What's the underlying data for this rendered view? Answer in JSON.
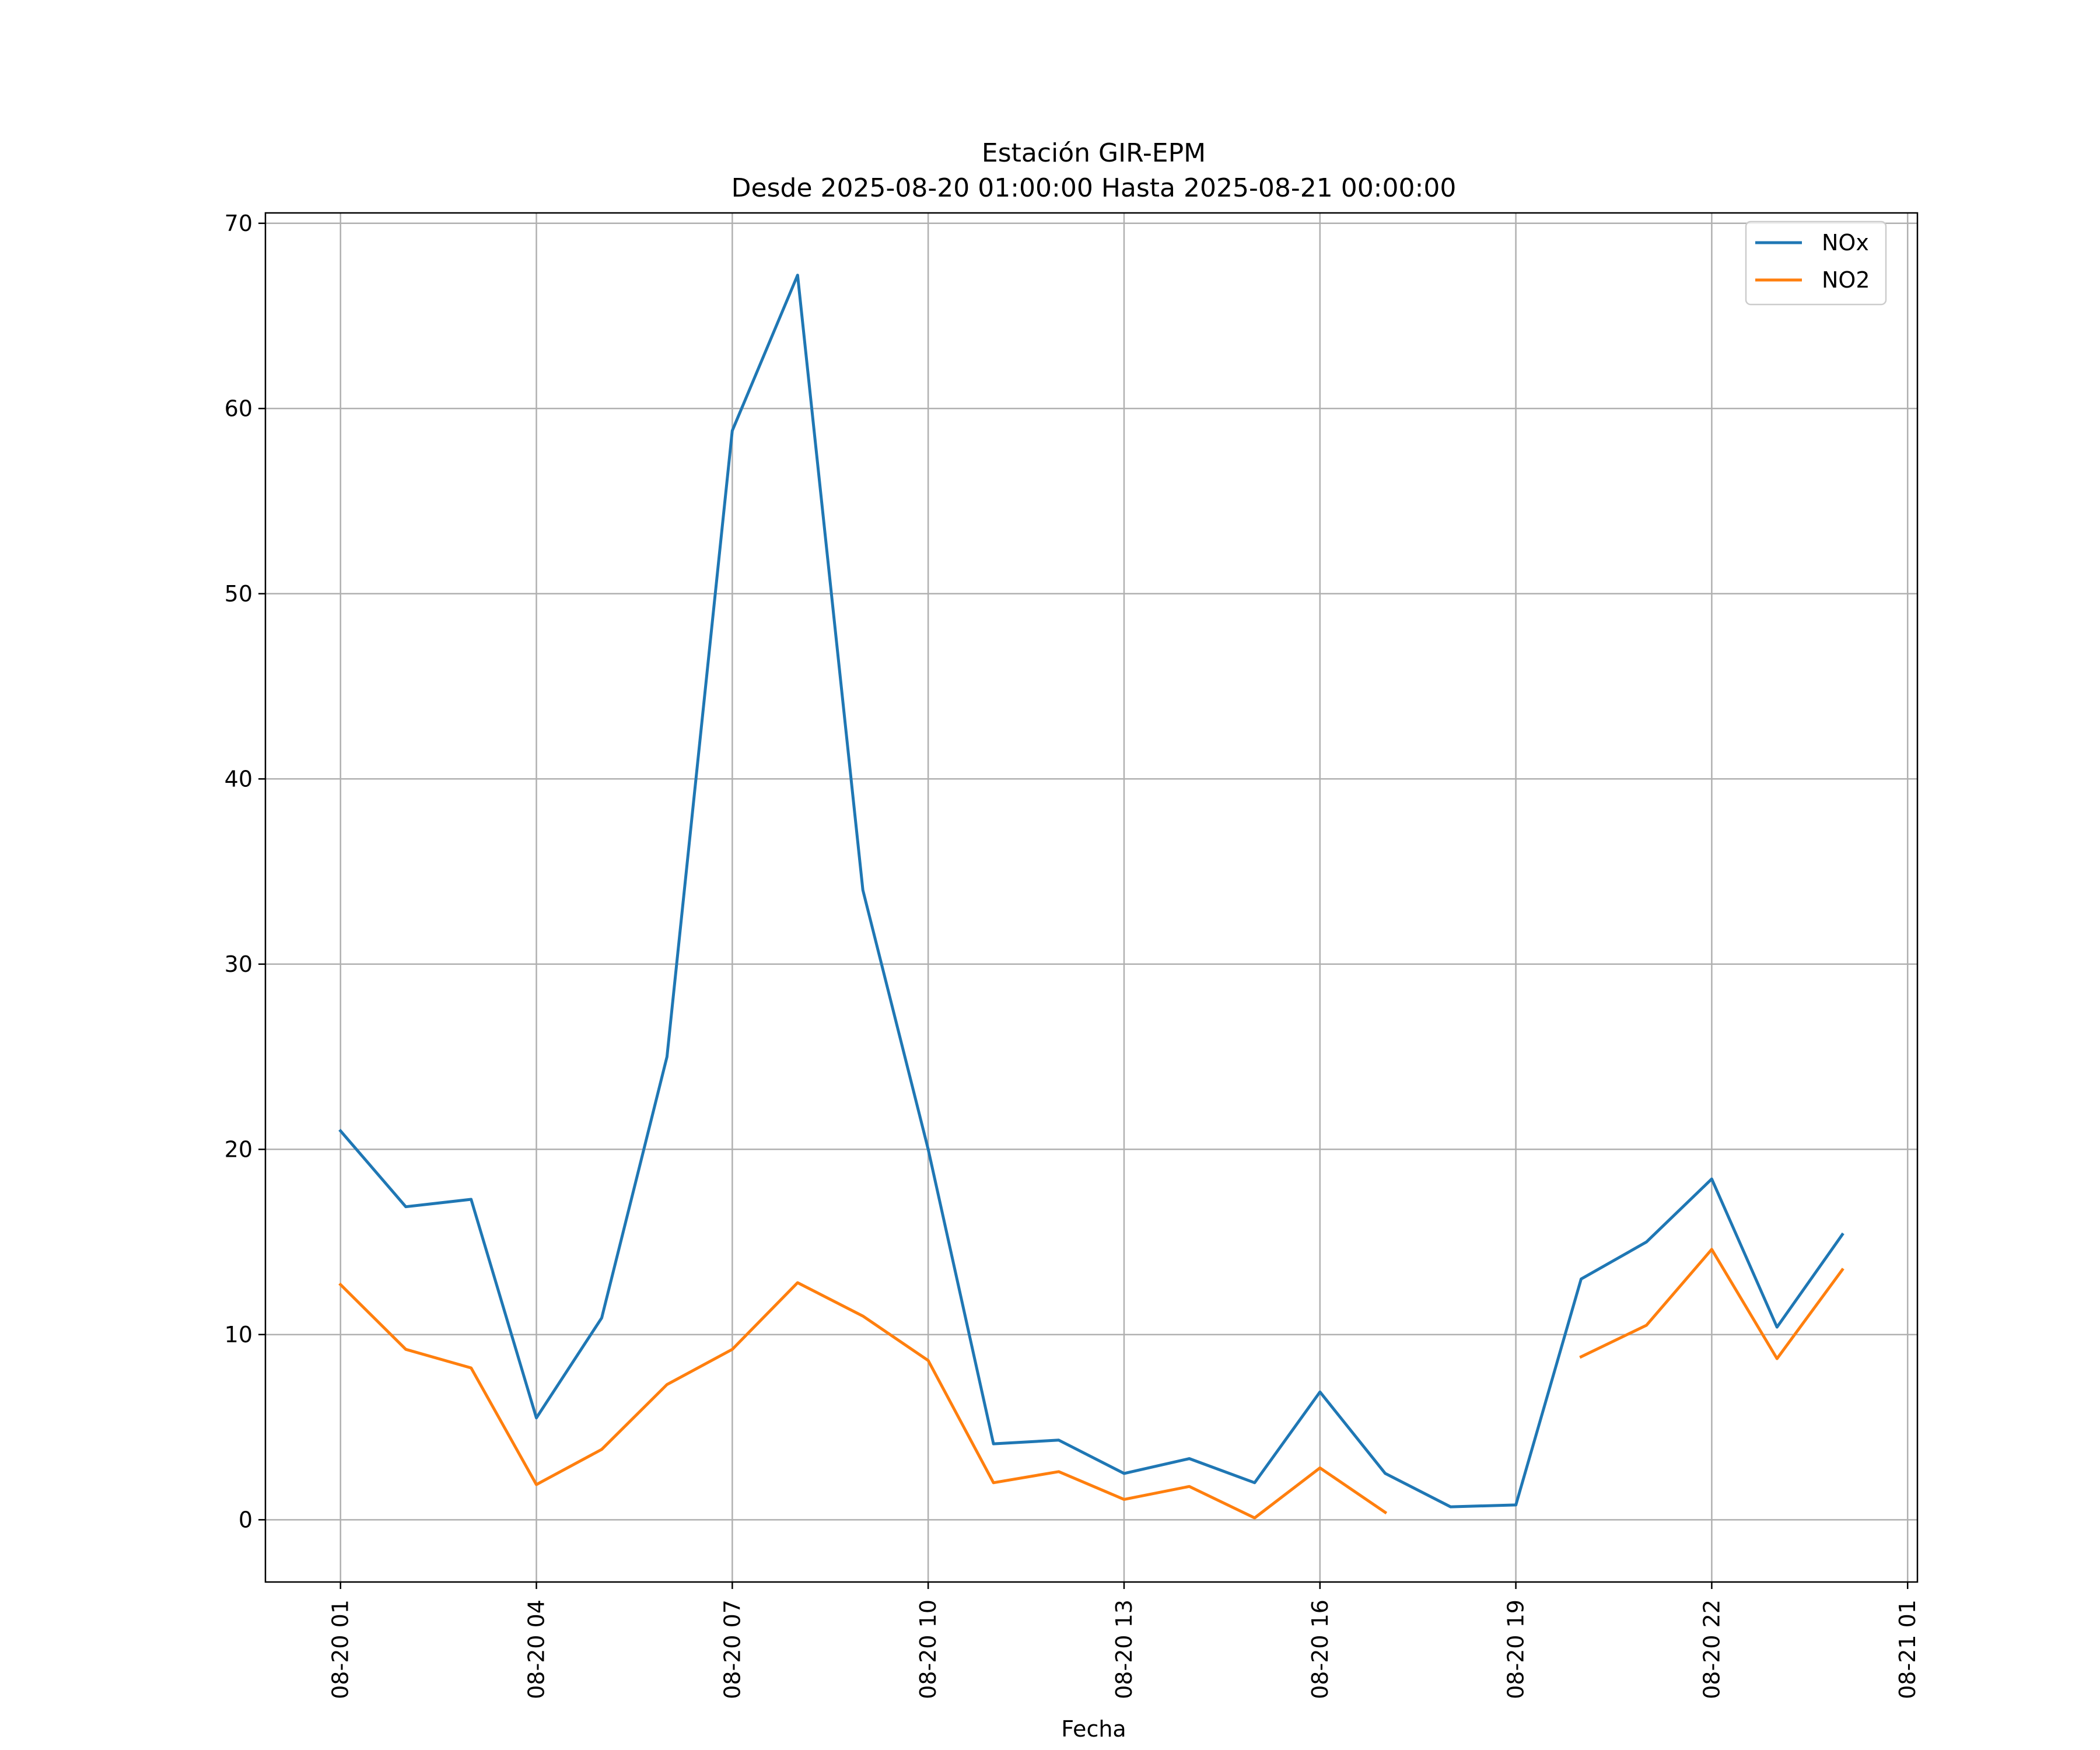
{
  "chart_data": {
    "type": "line",
    "title": "Estación GIR-EPM",
    "subtitle": "Desde 2025-08-20 01:00:00 Hasta 2025-08-21 00:00:00",
    "xlabel": "Fecha",
    "ylabel": "",
    "x": [
      "2025-08-20 01:00",
      "2025-08-20 02:00",
      "2025-08-20 03:00",
      "2025-08-20 04:00",
      "2025-08-20 05:00",
      "2025-08-20 06:00",
      "2025-08-20 07:00",
      "2025-08-20 08:00",
      "2025-08-20 09:00",
      "2025-08-20 10:00",
      "2025-08-20 11:00",
      "2025-08-20 12:00",
      "2025-08-20 13:00",
      "2025-08-20 14:00",
      "2025-08-20 15:00",
      "2025-08-20 16:00",
      "2025-08-20 17:00",
      "2025-08-20 18:00",
      "2025-08-20 19:00",
      "2025-08-20 20:00",
      "2025-08-20 21:00",
      "2025-08-20 22:00",
      "2025-08-20 23:00",
      "2025-08-21 00:00"
    ],
    "series": [
      {
        "name": "NOx",
        "color": "#1f77b4",
        "values": [
          21.0,
          16.9,
          17.3,
          5.5,
          10.9,
          25.0,
          58.8,
          67.2,
          34.0,
          20.0,
          4.1,
          4.3,
          2.5,
          3.3,
          2.0,
          6.9,
          2.5,
          0.7,
          0.8,
          13.0,
          15.0,
          18.4,
          10.4,
          15.4
        ]
      },
      {
        "name": "NO2",
        "color": "#ff7f0e",
        "values": [
          12.7,
          9.2,
          8.2,
          1.9,
          3.8,
          7.3,
          9.2,
          12.8,
          11.0,
          8.6,
          2.0,
          2.6,
          1.1,
          1.8,
          0.1,
          2.8,
          0.4,
          null,
          null,
          8.8,
          10.5,
          14.6,
          8.7,
          13.5
        ]
      }
    ],
    "xticks": [
      {
        "t": "2025-08-20 01:00",
        "label": "08-20 01"
      },
      {
        "t": "2025-08-20 04:00",
        "label": "08-20 04"
      },
      {
        "t": "2025-08-20 07:00",
        "label": "08-20 07"
      },
      {
        "t": "2025-08-20 10:00",
        "label": "08-20 10"
      },
      {
        "t": "2025-08-20 13:00",
        "label": "08-20 13"
      },
      {
        "t": "2025-08-20 16:00",
        "label": "08-20 16"
      },
      {
        "t": "2025-08-20 19:00",
        "label": "08-20 19"
      },
      {
        "t": "2025-08-20 22:00",
        "label": "08-20 22"
      },
      {
        "t": "2025-08-21 01:00",
        "label": "08-21 01"
      }
    ],
    "yticks": [
      0,
      10,
      20,
      30,
      40,
      50,
      60,
      70
    ],
    "xlim": [
      "2025-08-19 23:51",
      "2025-08-21 01:09"
    ],
    "ylim": [
      -3.36,
      70.56
    ],
    "grid": true,
    "legend_position": "top-right"
  }
}
